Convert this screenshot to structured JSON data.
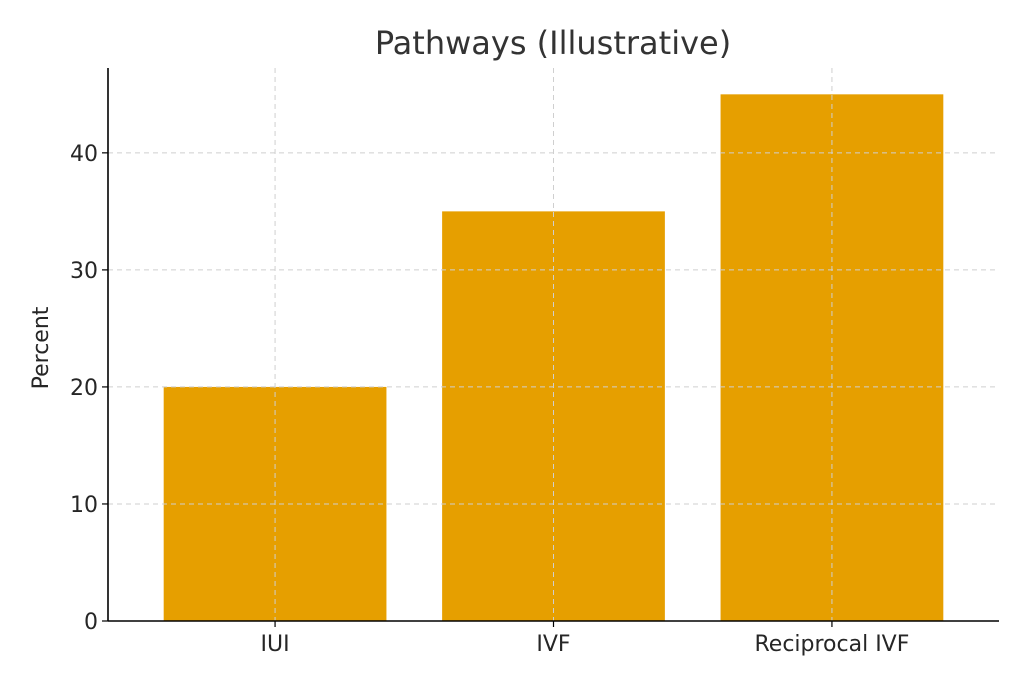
{
  "chart_data": {
    "type": "bar",
    "title": "Pathways (Illustrative)",
    "xlabel": "",
    "ylabel": "Percent",
    "categories": [
      "IUI",
      "IVF",
      "Reciprocal IVF"
    ],
    "values": [
      20,
      35,
      45
    ],
    "ylim": [
      0,
      47.25
    ],
    "yticks": [
      0,
      10,
      20,
      30,
      40
    ],
    "grid": true,
    "bar_color": "#E69F00"
  }
}
